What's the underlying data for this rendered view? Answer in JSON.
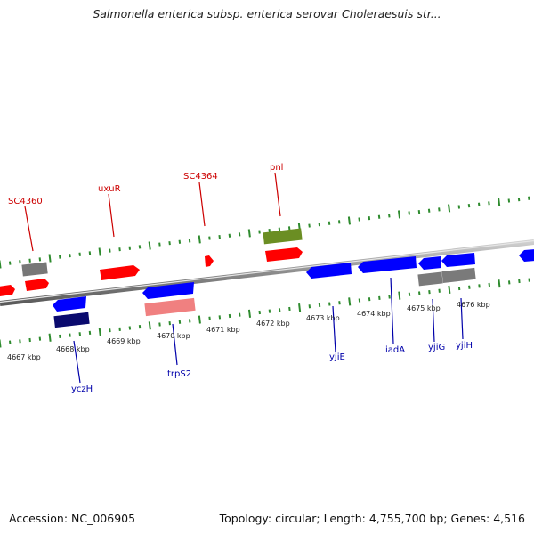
{
  "title": "Salmonella enterica subsp. enterica serovar Choleraesuis str...",
  "footer": {
    "accession": "Accession: NC_006905",
    "summary": "Topology: circular; Length: 4,755,700 bp; Genes: 4,516"
  },
  "colors": {
    "backbone": "#8c8c8c",
    "tick": "#2e8b2e",
    "forward_gene": "#ff0000",
    "reverse_gene": "#0000ff",
    "top_label": "#cc0000",
    "bottom_label": "#0000aa",
    "olive": "#6b8e23",
    "grey": "#7a7a7a",
    "navy": "#0a0a6e",
    "pink": "#f08080"
  },
  "scale": {
    "tick_labels": [
      "4667 kbp",
      "4668 kbp",
      "4669 kbp",
      "4670 kbp",
      "4671 kbp",
      "4672 kbp",
      "4673 kbp",
      "4674 kbp",
      "4675 kbp",
      "4676 kbp"
    ]
  },
  "gene_labels": {
    "top": [
      "SC4360",
      "uxuR",
      "SC4364",
      "pnl"
    ],
    "bottom": [
      "yczH",
      "trpS2",
      "yjiE",
      "iadA",
      "yjiG",
      "yjiH"
    ]
  }
}
